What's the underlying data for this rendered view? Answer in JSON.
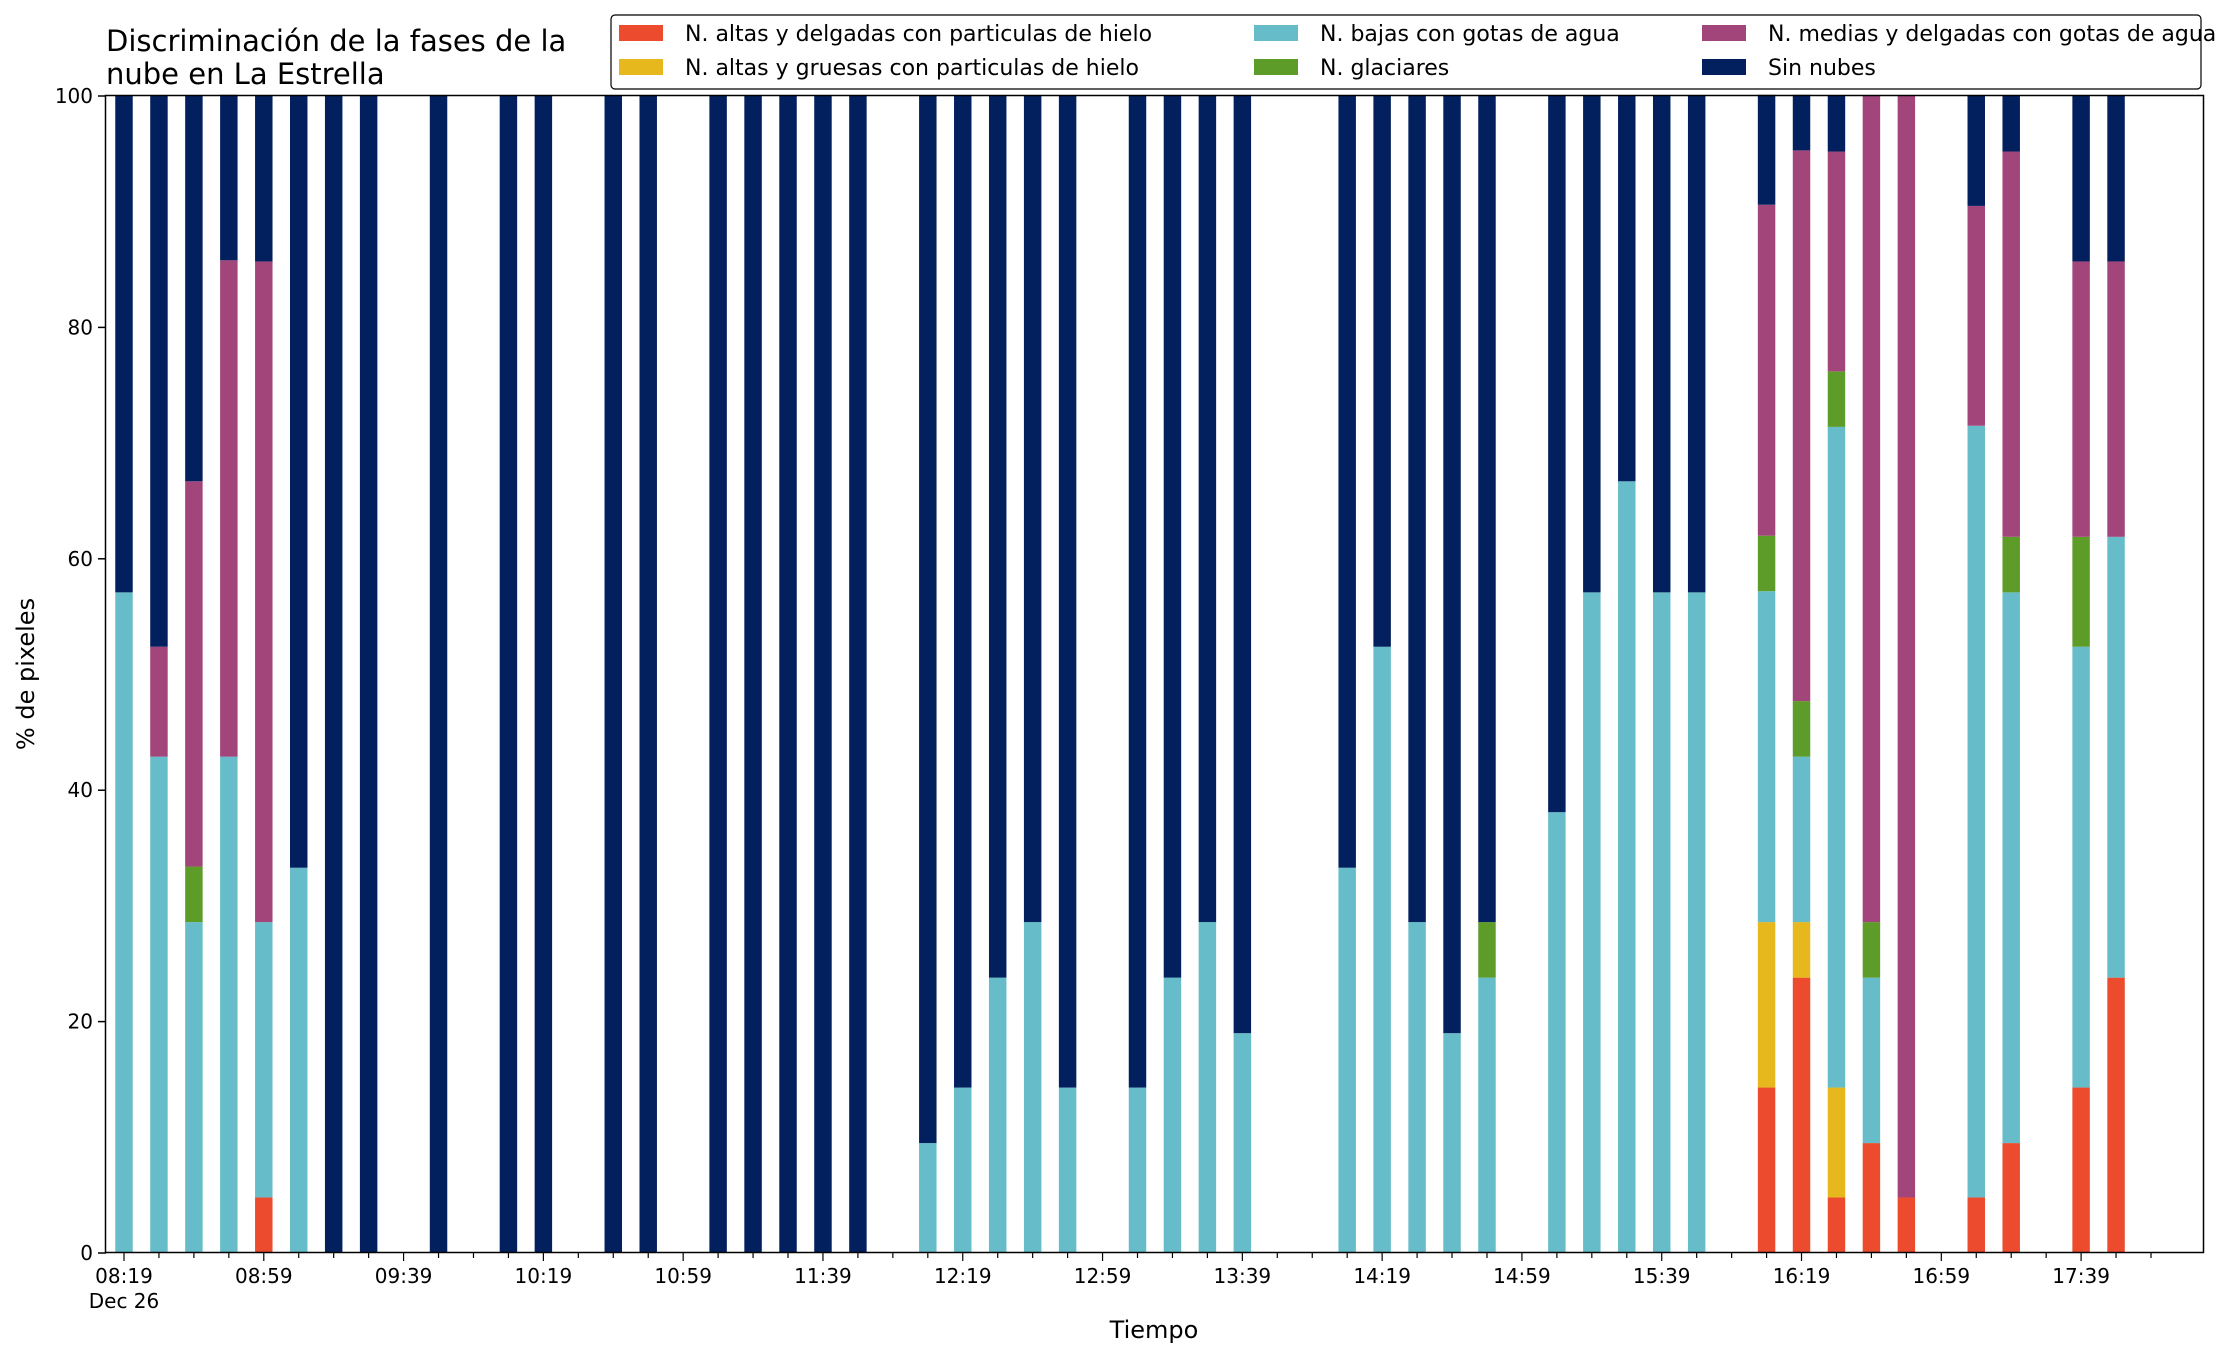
{
  "chart_data": {
    "type": "bar",
    "stacked": true,
    "title_lines": [
      "Discriminación de la fases de la",
      "nube en La Estrella"
    ],
    "xlabel": "Tiempo",
    "ylabel": "% de pixeles",
    "ylim": [
      0,
      100
    ],
    "yticks": [
      0,
      20,
      40,
      60,
      80,
      100
    ],
    "x_interval_minutes": 10,
    "x_tick_labels": [
      "08:19",
      "08:59",
      "09:39",
      "10:19",
      "10:59",
      "11:39",
      "12:19",
      "12:59",
      "13:39",
      "14:19",
      "14:59",
      "15:39",
      "16:19",
      "16:59",
      "17:39"
    ],
    "x_date_label": "Dec 26",
    "legend_position": "top-right",
    "grid": false,
    "categories": [
      "08:19",
      "08:29",
      "08:39",
      "08:49",
      "08:59",
      "09:09",
      "09:19",
      "09:29",
      "09:39",
      "09:49",
      "09:59",
      "10:09",
      "10:19",
      "10:29",
      "10:39",
      "10:49",
      "10:59",
      "11:09",
      "11:19",
      "11:29",
      "11:39",
      "11:49",
      "11:59",
      "12:09",
      "12:19",
      "12:29",
      "12:39",
      "12:49",
      "12:59",
      "13:09",
      "13:19",
      "13:29",
      "13:39",
      "13:49",
      "13:59",
      "14:09",
      "14:19",
      "14:29",
      "14:39",
      "14:49",
      "14:59",
      "15:09",
      "15:19",
      "15:29",
      "15:39",
      "15:49",
      "15:59",
      "16:09",
      "16:19",
      "16:29",
      "16:39",
      "16:49",
      "16:59",
      "17:09",
      "17:19",
      "17:29",
      "17:39",
      "17:49",
      "17:59"
    ],
    "series": [
      {
        "name": "N. altas y delgadas con particulas de hielo",
        "color": "#ec4b2d",
        "values": [
          0,
          0,
          0,
          0,
          4.8,
          0,
          0,
          0,
          0,
          0,
          0,
          0,
          0,
          0,
          0,
          0,
          0,
          0,
          0,
          0,
          0,
          0,
          0,
          0,
          0,
          0,
          0,
          0,
          0,
          0,
          0,
          0,
          0,
          0,
          0,
          0,
          0,
          0,
          0,
          0,
          0,
          0,
          0,
          0,
          0,
          0,
          0,
          14.3,
          23.8,
          4.8,
          9.5,
          4.8,
          0,
          4.8,
          9.5,
          0,
          14.3,
          23.8,
          0
        ]
      },
      {
        "name": "N. altas y gruesas con particulas de hielo",
        "color": "#e6b81d",
        "values": [
          0,
          0,
          0,
          0,
          0,
          0,
          0,
          0,
          0,
          0,
          0,
          0,
          0,
          0,
          0,
          0,
          0,
          0,
          0,
          0,
          0,
          0,
          0,
          0,
          0,
          0,
          0,
          0,
          0,
          0,
          0,
          0,
          0,
          0,
          0,
          0,
          0,
          0,
          0,
          0,
          0,
          0,
          0,
          0,
          0,
          0,
          0,
          14.3,
          4.8,
          9.5,
          0,
          0,
          0,
          0,
          0,
          0,
          0,
          0,
          0
        ]
      },
      {
        "name": "N. bajas con gotas de agua",
        "color": "#66bdc9",
        "values": [
          57.1,
          42.9,
          28.6,
          42.9,
          23.8,
          33.3,
          0,
          0,
          0,
          0,
          0,
          0,
          0,
          0,
          0,
          0,
          0,
          0,
          0,
          0,
          0,
          0,
          0,
          9.5,
          14.3,
          23.8,
          28.6,
          14.3,
          0,
          14.3,
          23.8,
          28.6,
          19.0,
          0,
          0,
          33.3,
          52.4,
          28.6,
          19.0,
          23.8,
          0,
          38.1,
          57.1,
          66.7,
          57.1,
          57.1,
          0,
          28.6,
          14.3,
          57.1,
          14.3,
          0,
          0,
          66.7,
          47.6,
          0,
          38.1,
          38.1,
          0
        ]
      },
      {
        "name": "N. glaciares",
        "color": "#5e9c2a",
        "values": [
          0,
          0,
          4.8,
          0,
          0,
          0,
          0,
          0,
          0,
          0,
          0,
          0,
          0,
          0,
          0,
          0,
          0,
          0,
          0,
          0,
          0,
          0,
          0,
          0,
          0,
          0,
          0,
          0,
          0,
          0,
          0,
          0,
          0,
          0,
          0,
          0,
          0,
          0,
          0,
          4.8,
          0,
          0,
          0,
          0,
          0,
          0,
          0,
          4.8,
          4.8,
          4.8,
          4.8,
          0,
          0,
          0,
          4.8,
          0,
          9.5,
          0,
          0
        ]
      },
      {
        "name": "N. medias y delgadas con gotas de agua",
        "color": "#a1457a",
        "values": [
          0,
          9.5,
          33.3,
          42.9,
          57.1,
          0,
          0,
          0,
          0,
          0,
          0,
          0,
          0,
          0,
          0,
          0,
          0,
          0,
          0,
          0,
          0,
          0,
          0,
          0,
          0,
          0,
          0,
          0,
          0,
          0,
          0,
          0,
          0,
          0,
          0,
          0,
          0,
          0,
          0,
          0,
          0,
          0,
          0,
          0,
          0,
          0,
          0,
          28.6,
          47.6,
          19.0,
          71.4,
          95.2,
          0,
          19.0,
          33.3,
          0,
          23.8,
          23.8,
          0
        ]
      },
      {
        "name": "Sin nubes",
        "color": "#021f5e",
        "values": [
          42.9,
          47.6,
          33.3,
          14.3,
          14.3,
          66.7,
          100,
          100,
          0,
          100,
          0,
          100,
          100,
          0,
          100,
          100,
          0,
          100,
          100,
          100,
          100,
          100,
          0,
          90.5,
          85.7,
          76.2,
          71.4,
          85.7,
          0,
          85.7,
          76.2,
          71.4,
          81.0,
          0,
          0,
          66.7,
          47.6,
          71.4,
          81.0,
          71.4,
          0,
          61.9,
          42.9,
          33.3,
          42.9,
          42.9,
          0,
          9.5,
          4.8,
          4.8,
          0,
          0,
          0,
          9.5,
          4.8,
          0,
          14.3,
          14.3,
          0
        ]
      }
    ]
  }
}
